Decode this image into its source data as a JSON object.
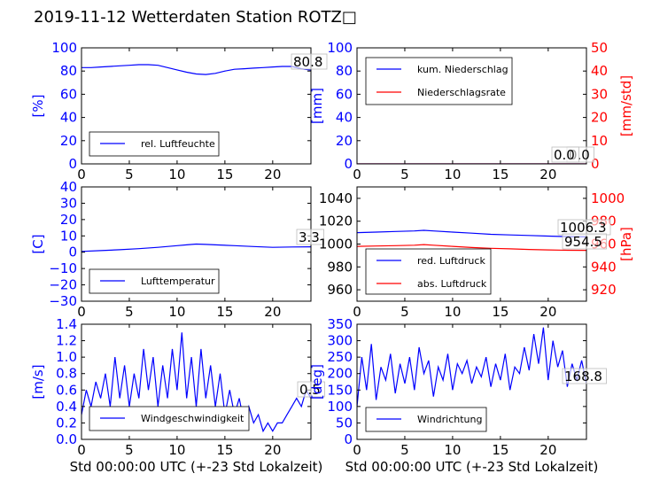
{
  "title": "2019-11-12 Wetterdaten Station ROTZ□",
  "xlabel": "Std 00:00:00 UTC (+-23 Std Lokalzeit)",
  "colors": {
    "primary": "#0000ff",
    "secondary": "#ff0000"
  },
  "chart_data": [
    {
      "type": "line",
      "ylabel": "[%]",
      "ylim": [
        0,
        100
      ],
      "yticks": [
        0,
        20,
        40,
        60,
        80,
        100
      ],
      "xlim": [
        0,
        24
      ],
      "xticks": [
        0,
        5,
        10,
        15,
        20
      ],
      "legend": "lower-left",
      "value_label": "80.8",
      "series": [
        {
          "name": "rel. Luftfeuchte",
          "color": "#0000ff",
          "x": [
            0,
            1,
            2,
            3,
            4,
            5,
            6,
            7,
            8,
            9,
            10,
            11,
            12,
            13,
            14,
            15,
            16,
            17,
            18,
            19,
            20,
            21,
            22,
            23,
            24
          ],
          "y": [
            83,
            83,
            83.5,
            84,
            84.5,
            85,
            85.5,
            85.5,
            85,
            83,
            81,
            79,
            77.5,
            77,
            78,
            80,
            81.5,
            82,
            82.5,
            83,
            83.5,
            84,
            84,
            82,
            80.8
          ]
        }
      ]
    },
    {
      "type": "line",
      "ylabel": "[mm]",
      "y2label": "[mm/std]",
      "ylim": [
        0,
        100
      ],
      "yticks": [
        0,
        20,
        40,
        60,
        80,
        100
      ],
      "y2lim": [
        0,
        50
      ],
      "y2ticks": [
        0,
        10,
        20,
        30,
        40,
        50
      ],
      "xlim": [
        0,
        24
      ],
      "xticks": [
        0,
        5,
        10,
        15,
        20
      ],
      "legend": "top-left",
      "value_labels": [
        "0.0",
        "0.0"
      ],
      "series": [
        {
          "name": "kum. Niederschlag",
          "color": "#0000ff",
          "axis": "left",
          "x": [
            0,
            24
          ],
          "y": [
            0,
            0
          ]
        },
        {
          "name": "Niederschlagsrate",
          "color": "#ff0000",
          "axis": "right",
          "x": [
            0,
            24
          ],
          "y": [
            0,
            0
          ]
        }
      ]
    },
    {
      "type": "line",
      "ylabel": "[C]",
      "ylim": [
        -30,
        40
      ],
      "yticks": [
        -30,
        -20,
        -10,
        0,
        10,
        20,
        30,
        40
      ],
      "xlim": [
        0,
        24
      ],
      "xticks": [
        0,
        5,
        10,
        15,
        20
      ],
      "legend": "lower-left",
      "value_label": "3.3",
      "series": [
        {
          "name": "Lufttemperatur",
          "color": "#0000ff",
          "x": [
            0,
            2,
            4,
            6,
            8,
            10,
            11,
            12,
            13,
            14,
            16,
            18,
            20,
            22,
            24
          ],
          "y": [
            0.5,
            1,
            1.5,
            2.2,
            3,
            4,
            4.5,
            5,
            4.8,
            4.5,
            4,
            3.5,
            3,
            3.2,
            3.3
          ]
        }
      ]
    },
    {
      "type": "line",
      "y2label": "[hPa]",
      "ylim": [
        950,
        1050
      ],
      "yticks": [
        960,
        980,
        1000,
        1020,
        1040
      ],
      "y2lim": [
        910,
        1010
      ],
      "y2ticks": [
        920,
        940,
        960,
        980,
        1000
      ],
      "xlim": [
        0,
        24
      ],
      "xticks": [
        0,
        5,
        10,
        15,
        20
      ],
      "legend": "lower-left",
      "value_labels": [
        "1006.3",
        "954.5"
      ],
      "series": [
        {
          "name": "red. Luftdruck",
          "color": "#0000ff",
          "axis": "left",
          "x": [
            0,
            2,
            4,
            6,
            7,
            8,
            10,
            12,
            14,
            16,
            18,
            20,
            22,
            24
          ],
          "y": [
            1010,
            1010.5,
            1011,
            1011.5,
            1012,
            1011.5,
            1010.5,
            1009.5,
            1008.5,
            1008,
            1007.5,
            1007,
            1006.5,
            1006.3
          ]
        },
        {
          "name": "abs. Luftdruck",
          "color": "#ff0000",
          "axis": "right",
          "x": [
            0,
            2,
            4,
            6,
            7,
            8,
            10,
            12,
            14,
            16,
            18,
            20,
            22,
            24
          ],
          "y": [
            958,
            958.3,
            958.6,
            959,
            959.5,
            959,
            958,
            957,
            956.3,
            955.8,
            955.3,
            954.9,
            954.6,
            954.5
          ]
        }
      ]
    },
    {
      "type": "line",
      "ylabel": "[m/s]",
      "ylim": [
        0,
        1.4
      ],
      "yticks": [
        0.0,
        0.2,
        0.4,
        0.6,
        0.8,
        1.0,
        1.2,
        1.4
      ],
      "xlim": [
        0,
        24
      ],
      "xticks": [
        0,
        5,
        10,
        15,
        20
      ],
      "legend": "lower-left",
      "value_label": "0.5",
      "series": [
        {
          "name": "Windgeschwindigkeit",
          "color": "#0000ff",
          "x": [
            0,
            0.5,
            1,
            1.5,
            2,
            2.5,
            3,
            3.5,
            4,
            4.5,
            5,
            5.5,
            6,
            6.5,
            7,
            7.5,
            8,
            8.5,
            9,
            9.5,
            10,
            10.5,
            11,
            11.5,
            12,
            12.5,
            13,
            13.5,
            14,
            14.5,
            15,
            15.5,
            16,
            16.5,
            17,
            17.5,
            18,
            18.5,
            19,
            19.5,
            20,
            20.5,
            21,
            21.5,
            22,
            22.5,
            23,
            23.5,
            24
          ],
          "y": [
            0.3,
            0.6,
            0.4,
            0.7,
            0.5,
            0.8,
            0.4,
            1.0,
            0.5,
            0.9,
            0.4,
            0.8,
            0.5,
            1.1,
            0.6,
            1.0,
            0.4,
            0.9,
            0.5,
            1.1,
            0.6,
            1.3,
            0.5,
            1.0,
            0.4,
            1.1,
            0.5,
            0.9,
            0.4,
            0.8,
            0.3,
            0.6,
            0.3,
            0.5,
            0.2,
            0.4,
            0.2,
            0.3,
            0.1,
            0.2,
            0.1,
            0.2,
            0.2,
            0.3,
            0.4,
            0.5,
            0.4,
            0.6,
            0.5
          ]
        }
      ]
    },
    {
      "type": "line",
      "ylabel": "[deg]",
      "ylim": [
        0,
        350
      ],
      "yticks": [
        0,
        50,
        100,
        150,
        200,
        250,
        300,
        350
      ],
      "xlim": [
        0,
        24
      ],
      "xticks": [
        0,
        5,
        10,
        15,
        20
      ],
      "legend": "lower-left",
      "value_label": "168.8",
      "series": [
        {
          "name": "Windrichtung",
          "color": "#0000ff",
          "x": [
            0,
            0.5,
            1,
            1.5,
            2,
            2.5,
            3,
            3.5,
            4,
            4.5,
            5,
            5.5,
            6,
            6.5,
            7,
            7.5,
            8,
            8.5,
            9,
            9.5,
            10,
            10.5,
            11,
            11.5,
            12,
            12.5,
            13,
            13.5,
            14,
            14.5,
            15,
            15.5,
            16,
            16.5,
            17,
            17.5,
            18,
            18.5,
            19,
            19.5,
            20,
            20.5,
            21,
            21.5,
            22,
            22.5,
            23,
            23.5,
            24
          ],
          "y": [
            100,
            250,
            150,
            290,
            120,
            220,
            180,
            260,
            140,
            230,
            170,
            250,
            150,
            280,
            200,
            240,
            130,
            220,
            180,
            260,
            150,
            230,
            200,
            240,
            170,
            220,
            190,
            250,
            160,
            230,
            180,
            260,
            150,
            220,
            200,
            280,
            210,
            320,
            230,
            340,
            180,
            300,
            220,
            270,
            160,
            230,
            180,
            240,
            168.8
          ]
        }
      ]
    }
  ]
}
